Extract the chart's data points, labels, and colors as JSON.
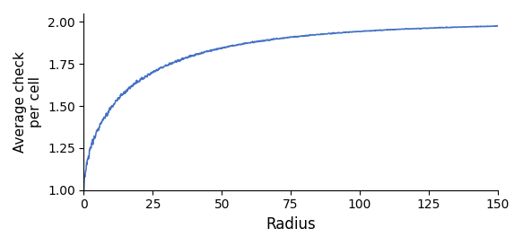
{
  "title": "",
  "xlabel": "Radius",
  "ylabel": "Average check\nper cell",
  "line_color": "#4472C4",
  "line_width": 1.2,
  "xlim": [
    0,
    150
  ],
  "ylim": [
    1.0,
    2.05
  ],
  "yticks": [
    1.0,
    1.25,
    1.5,
    1.75,
    2.0
  ],
  "xticks": [
    0,
    25,
    50,
    75,
    100,
    125,
    150
  ],
  "figsize": [
    5.83,
    2.74
  ],
  "dpi": 100,
  "a_param": 0.28,
  "noise_amp_fast": 0.025,
  "noise_amp_slow": 0.006,
  "noise_decay": 20
}
